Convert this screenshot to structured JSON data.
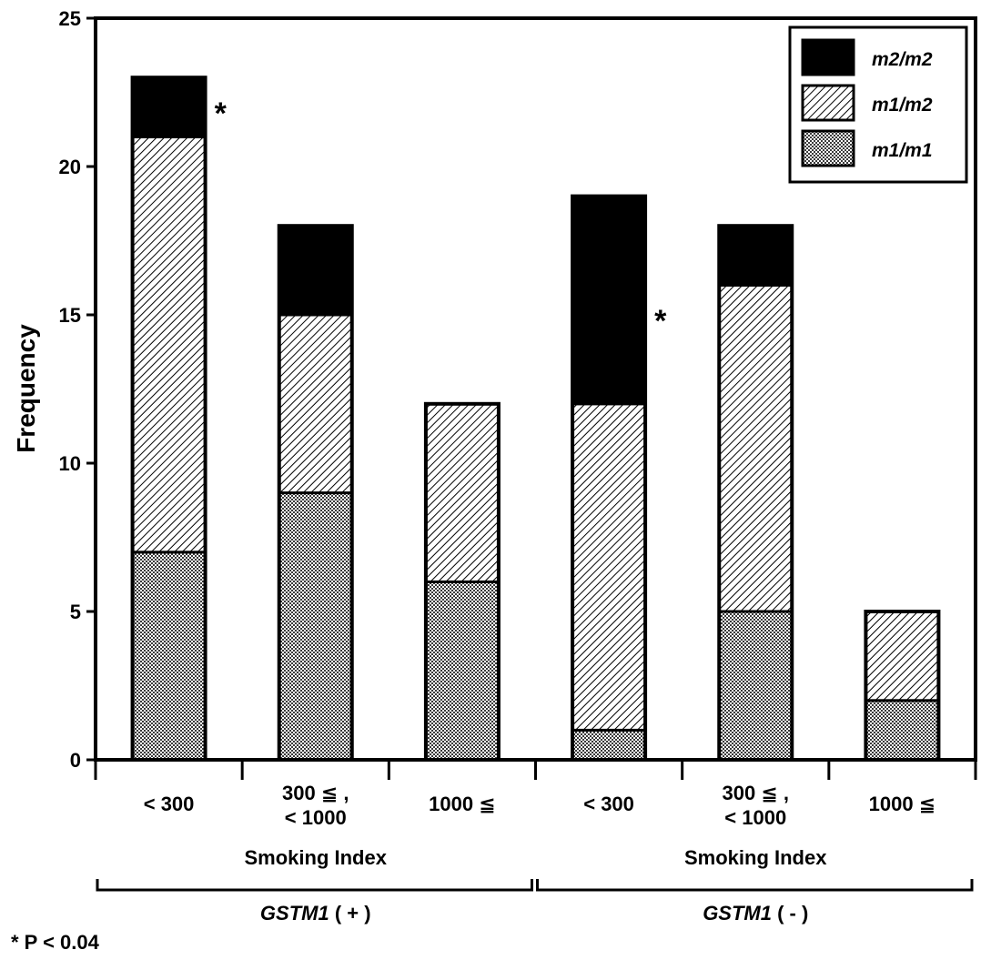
{
  "chart_data": {
    "type": "bar",
    "stacked": true,
    "ylabel": "Frequency",
    "ylim": [
      0,
      25
    ],
    "yticks": [
      "0",
      "5",
      "10",
      "15",
      "20",
      "25"
    ],
    "categories": [
      [
        "< 300"
      ],
      [
        "300 ≦ ,",
        "< 1000"
      ],
      [
        "1000 ≦"
      ],
      [
        "< 300"
      ],
      [
        "300 ≦ ,",
        "< 1000"
      ],
      [
        "1000 ≦"
      ]
    ],
    "series": [
      {
        "name": "m1/m1",
        "pattern": "dotted",
        "color": "#7a7a7a",
        "values": [
          7,
          9,
          6,
          1,
          5,
          2
        ]
      },
      {
        "name": "m1/m2",
        "pattern": "hatched",
        "color": "#ffffff",
        "values": [
          14,
          6,
          6,
          11,
          11,
          3
        ]
      },
      {
        "name": "m2/m2",
        "pattern": "solid",
        "color": "#000000",
        "values": [
          2,
          3,
          0,
          7,
          2,
          0
        ]
      }
    ],
    "groups": [
      {
        "sub_label": "Smoking Index",
        "gene": "GSTM1",
        "sign": "( + )"
      },
      {
        "sub_label": "Smoking Index",
        "gene": "GSTM1",
        "sign": "( - )"
      }
    ],
    "significance_marker": "*",
    "significant_bars": [
      0,
      3
    ],
    "footnote": "* P < 0.04",
    "legend_position": "top-right",
    "grid": false
  }
}
